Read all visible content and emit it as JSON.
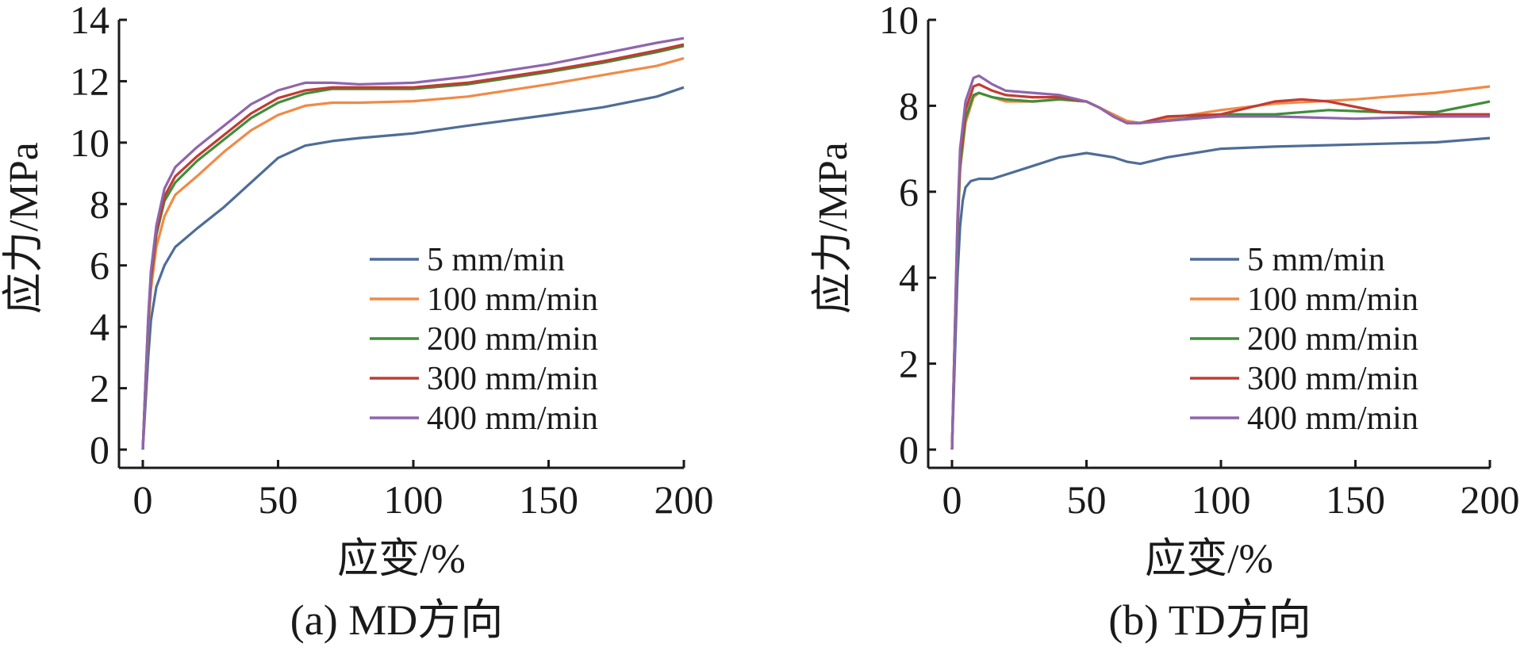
{
  "chart_data": [
    {
      "type": "line",
      "caption": "(a) MD方向",
      "xlabel": "应变/%",
      "ylabel": "应力/MPa",
      "xlim": [
        0,
        200
      ],
      "ylim": [
        0,
        14
      ],
      "xticks": [
        0,
        50,
        100,
        150,
        200
      ],
      "yticks": [
        0,
        2,
        4,
        6,
        8,
        10,
        12,
        14
      ],
      "legend_position": "bottom-right",
      "series": [
        {
          "name": "5 mm/min",
          "color": "#4e6d98",
          "x": [
            0,
            1,
            2,
            3,
            5,
            8,
            12,
            20,
            30,
            40,
            50,
            60,
            70,
            80,
            100,
            120,
            150,
            170,
            190,
            200
          ],
          "y": [
            0,
            1.5,
            3.0,
            4.2,
            5.3,
            6.0,
            6.6,
            7.2,
            7.9,
            8.7,
            9.5,
            9.9,
            10.05,
            10.15,
            10.3,
            10.55,
            10.9,
            11.15,
            11.5,
            11.8
          ]
        },
        {
          "name": "100 mm/min",
          "color": "#f08a46",
          "x": [
            0,
            1,
            2,
            3,
            5,
            8,
            12,
            20,
            30,
            40,
            50,
            60,
            70,
            80,
            100,
            120,
            150,
            170,
            190,
            200
          ],
          "y": [
            0,
            2.0,
            3.9,
            5.2,
            6.6,
            7.6,
            8.3,
            8.9,
            9.7,
            10.4,
            10.9,
            11.2,
            11.3,
            11.3,
            11.35,
            11.5,
            11.9,
            12.2,
            12.5,
            12.75
          ]
        },
        {
          "name": "200 mm/min",
          "color": "#3e8e3a",
          "x": [
            0,
            1,
            2,
            3,
            5,
            8,
            12,
            20,
            30,
            40,
            50,
            60,
            70,
            80,
            100,
            120,
            150,
            170,
            190,
            200
          ],
          "y": [
            0,
            2.1,
            4.1,
            5.5,
            7.0,
            8.1,
            8.7,
            9.4,
            10.1,
            10.8,
            11.3,
            11.6,
            11.75,
            11.75,
            11.75,
            11.9,
            12.3,
            12.6,
            12.95,
            13.15
          ]
        },
        {
          "name": "300 mm/min",
          "color": "#c23b32",
          "x": [
            0,
            1,
            2,
            3,
            5,
            8,
            12,
            20,
            30,
            40,
            50,
            60,
            70,
            80,
            100,
            120,
            150,
            170,
            190,
            200
          ],
          "y": [
            0,
            2.15,
            4.2,
            5.6,
            7.1,
            8.25,
            8.9,
            9.55,
            10.25,
            10.95,
            11.45,
            11.7,
            11.8,
            11.8,
            11.8,
            11.95,
            12.35,
            12.65,
            13.0,
            13.2
          ]
        },
        {
          "name": "400 mm/min",
          "color": "#8f65ad",
          "x": [
            0,
            1,
            2,
            3,
            5,
            8,
            12,
            20,
            30,
            40,
            50,
            60,
            70,
            80,
            100,
            120,
            150,
            170,
            190,
            200
          ],
          "y": [
            0,
            2.2,
            4.3,
            5.8,
            7.3,
            8.5,
            9.2,
            9.85,
            10.55,
            11.25,
            11.7,
            11.95,
            11.95,
            11.9,
            11.95,
            12.15,
            12.55,
            12.9,
            13.25,
            13.4
          ]
        }
      ]
    },
    {
      "type": "line",
      "caption": "(b) TD方向",
      "xlabel": "应变/%",
      "ylabel": "应力/MPa",
      "xlim": [
        0,
        200
      ],
      "ylim": [
        0,
        10
      ],
      "xticks": [
        0,
        50,
        100,
        150,
        200
      ],
      "yticks": [
        0,
        2,
        4,
        6,
        8,
        10
      ],
      "legend_position": "bottom-right",
      "series": [
        {
          "name": "5 mm/min",
          "color": "#4e6d98",
          "x": [
            0,
            1,
            2,
            3,
            4,
            5,
            7,
            10,
            15,
            20,
            30,
            40,
            50,
            60,
            65,
            70,
            80,
            100,
            120,
            150,
            180,
            200
          ],
          "y": [
            0,
            2.0,
            4.0,
            5.2,
            5.8,
            6.1,
            6.25,
            6.3,
            6.3,
            6.4,
            6.6,
            6.8,
            6.9,
            6.8,
            6.7,
            6.65,
            6.8,
            7.0,
            7.05,
            7.1,
            7.15,
            7.25
          ]
        },
        {
          "name": "100 mm/min",
          "color": "#f08a46",
          "x": [
            0,
            1,
            2,
            3,
            5,
            8,
            10,
            15,
            20,
            30,
            40,
            50,
            55,
            60,
            65,
            70,
            80,
            100,
            120,
            150,
            180,
            200
          ],
          "y": [
            0,
            2.5,
            5.0,
            6.5,
            7.6,
            8.2,
            8.3,
            8.2,
            8.1,
            8.1,
            8.15,
            8.1,
            7.95,
            7.8,
            7.65,
            7.6,
            7.7,
            7.9,
            8.05,
            8.15,
            8.3,
            8.45
          ]
        },
        {
          "name": "200 mm/min",
          "color": "#3e8e3a",
          "x": [
            0,
            1,
            2,
            3,
            5,
            8,
            10,
            15,
            20,
            30,
            40,
            50,
            55,
            60,
            65,
            70,
            80,
            100,
            120,
            140,
            160,
            180,
            200
          ],
          "y": [
            0,
            2.5,
            5.0,
            6.6,
            7.7,
            8.25,
            8.3,
            8.2,
            8.15,
            8.1,
            8.15,
            8.1,
            7.95,
            7.75,
            7.6,
            7.6,
            7.65,
            7.8,
            7.8,
            7.9,
            7.85,
            7.85,
            8.1
          ]
        },
        {
          "name": "300 mm/min",
          "color": "#c23b32",
          "x": [
            0,
            1,
            2,
            3,
            5,
            8,
            10,
            15,
            20,
            30,
            40,
            50,
            55,
            60,
            65,
            70,
            80,
            100,
            120,
            130,
            140,
            160,
            180,
            200
          ],
          "y": [
            0,
            2.6,
            5.2,
            6.8,
            7.9,
            8.45,
            8.5,
            8.35,
            8.25,
            8.2,
            8.2,
            8.1,
            7.95,
            7.75,
            7.6,
            7.6,
            7.75,
            7.8,
            8.1,
            8.15,
            8.1,
            7.85,
            7.8,
            7.8
          ]
        },
        {
          "name": "400 mm/min",
          "color": "#8f65ad",
          "x": [
            0,
            1,
            2,
            3,
            5,
            8,
            10,
            15,
            20,
            30,
            40,
            50,
            55,
            60,
            65,
            70,
            80,
            100,
            120,
            150,
            180,
            200
          ],
          "y": [
            0,
            2.6,
            5.3,
            7.0,
            8.1,
            8.65,
            8.7,
            8.5,
            8.35,
            8.3,
            8.25,
            8.1,
            7.95,
            7.75,
            7.6,
            7.6,
            7.65,
            7.75,
            7.75,
            7.7,
            7.75,
            7.75
          ]
        }
      ]
    }
  ]
}
